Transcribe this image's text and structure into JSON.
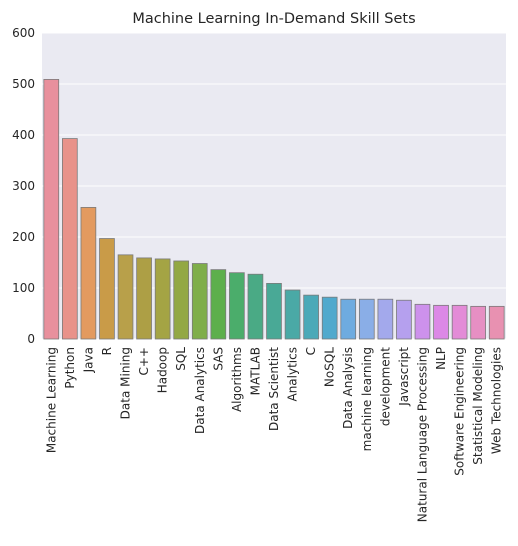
{
  "chart_data": {
    "type": "bar",
    "title": "Machine Learning In-Demand Skill Sets",
    "xlabel": "",
    "ylabel": "",
    "ylim": [
      0,
      600
    ],
    "yticks": [
      0,
      100,
      200,
      300,
      400,
      500,
      600
    ],
    "grid": true,
    "categories": [
      "Machine Learning",
      "Python",
      "Java",
      "R",
      "Data Mining",
      "C++",
      "Hadoop",
      "SQL",
      "Data Analytics",
      "SAS",
      "Algorithms",
      "MATLAB",
      "Data Scientist",
      "Analytics",
      "C",
      "NoSQL",
      "Data Analysis",
      "machine learning",
      "development",
      "Javascript",
      "Natural Language Processing",
      "NLP",
      "Software Engineering",
      "Statistical Modeling",
      "Web Technologies"
    ],
    "values": [
      509,
      393,
      258,
      197,
      165,
      159,
      157,
      153,
      148,
      136,
      130,
      127,
      109,
      96,
      86,
      82,
      78,
      78,
      78,
      76,
      68,
      66,
      66,
      64,
      64
    ],
    "colors": [
      "#e8909d",
      "#e8928a",
      "#e39a5f",
      "#c99b48",
      "#b8a04a",
      "#ad9f45",
      "#a4a444",
      "#93a844",
      "#7fae4a",
      "#5daf4c",
      "#4bad6b",
      "#4aaa85",
      "#49a996",
      "#4aa9a6",
      "#4ba9b8",
      "#50a9cd",
      "#6eabe0",
      "#8aaee7",
      "#a3a9ec",
      "#b5a0ee",
      "#cd91ec",
      "#dc88e6",
      "#e38bd7",
      "#e68fc3",
      "#e891b1"
    ],
    "background_color": "#eaeaf2",
    "grid_color": "#ffffff",
    "edge_color": "#7a7a7a"
  }
}
